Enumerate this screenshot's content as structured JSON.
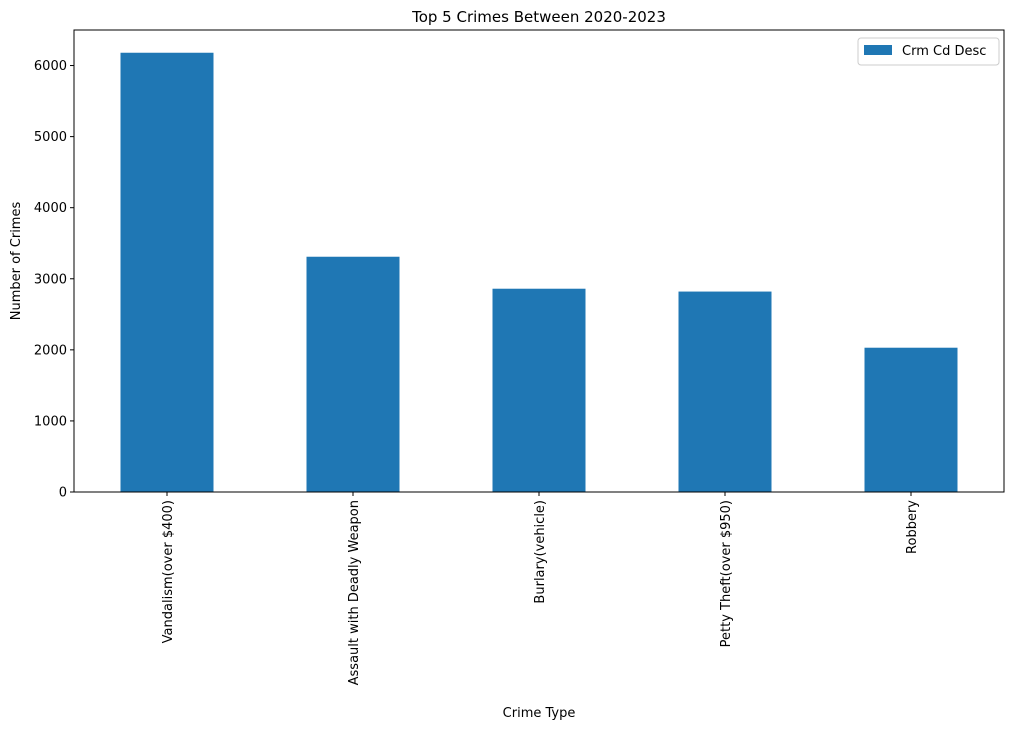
{
  "chart_data": {
    "type": "bar",
    "title": "Top 5 Crimes Between 2020-2023",
    "xlabel": "Crime Type",
    "ylabel": "Number of Crimes",
    "categories": [
      "Vandalism(over $400)",
      "Assault with Deadly Weapon",
      "Burlary(vehicle)",
      "Petty Theft(over $950)",
      "Robbery"
    ],
    "series": [
      {
        "name": "Crm Cd Desc",
        "values": [
          6180,
          3310,
          2860,
          2820,
          2030
        ]
      }
    ],
    "ylim": [
      0,
      6500
    ],
    "yticks": [
      0,
      1000,
      2000,
      3000,
      4000,
      5000,
      6000
    ],
    "grid": false,
    "legend_position": "top-right",
    "colors": {
      "bar": "#1f77b4"
    }
  }
}
